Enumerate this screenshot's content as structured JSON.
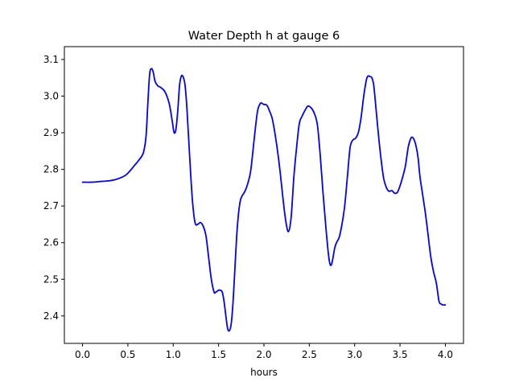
{
  "chart_data": {
    "type": "line",
    "title": "Water Depth h at gauge 6",
    "xlabel": "hours",
    "ylabel": "",
    "xlim": [
      -0.2,
      4.2
    ],
    "ylim": [
      2.325,
      3.135
    ],
    "xticks": [
      0.0,
      0.5,
      1.0,
      1.5,
      2.0,
      2.5,
      3.0,
      3.5,
      4.0
    ],
    "xtick_labels": [
      "0.0",
      "0.5",
      "1.0",
      "1.5",
      "2.0",
      "2.5",
      "3.0",
      "3.5",
      "4.0"
    ],
    "yticks": [
      2.4,
      2.5,
      2.6,
      2.7,
      2.8,
      2.9,
      3.0,
      3.1
    ],
    "ytick_labels": [
      "2.4",
      "2.5",
      "2.6",
      "2.7",
      "2.8",
      "2.9",
      "3.0",
      "3.1"
    ],
    "grid": false,
    "series": [
      {
        "color": "#0000ff",
        "x": [
          0.0,
          0.1,
          0.2,
          0.3,
          0.36,
          0.42,
          0.48,
          0.52,
          0.57,
          0.62,
          0.67,
          0.7,
          0.72,
          0.74,
          0.76,
          0.78,
          0.8,
          0.83,
          0.86,
          0.9,
          0.93,
          0.96,
          0.99,
          1.01,
          1.03,
          1.05,
          1.07,
          1.09,
          1.11,
          1.13,
          1.15,
          1.18,
          1.21,
          1.24,
          1.27,
          1.3,
          1.33,
          1.36,
          1.39,
          1.42,
          1.45,
          1.47,
          1.5,
          1.52,
          1.54,
          1.56,
          1.58,
          1.6,
          1.62,
          1.64,
          1.66,
          1.68,
          1.7,
          1.72,
          1.74,
          1.76,
          1.79,
          1.82,
          1.85,
          1.87,
          1.9,
          1.93,
          1.96,
          1.98,
          2.0,
          2.02,
          2.04,
          2.06,
          2.09,
          2.12,
          2.15,
          2.18,
          2.21,
          2.24,
          2.27,
          2.3,
          2.33,
          2.36,
          2.39,
          2.42,
          2.45,
          2.48,
          2.5,
          2.53,
          2.56,
          2.59,
          2.62,
          2.65,
          2.68,
          2.71,
          2.73,
          2.75,
          2.78,
          2.8,
          2.83,
          2.86,
          2.89,
          2.92,
          2.95,
          2.98,
          3.01,
          3.04,
          3.07,
          3.1,
          3.13,
          3.15,
          3.17,
          3.19,
          3.21,
          3.23,
          3.26,
          3.29,
          3.32,
          3.35,
          3.38,
          3.41,
          3.44,
          3.47,
          3.5,
          3.53,
          3.56,
          3.59,
          3.62,
          3.64,
          3.66,
          3.68,
          3.7,
          3.72,
          3.75,
          3.78,
          3.81,
          3.84,
          3.87,
          3.9,
          3.93,
          3.95,
          3.97,
          4.0
        ],
        "y": [
          2.765,
          2.765,
          2.767,
          2.769,
          2.772,
          2.777,
          2.785,
          2.795,
          2.81,
          2.825,
          2.845,
          2.89,
          2.98,
          3.06,
          3.075,
          3.065,
          3.04,
          3.028,
          3.024,
          3.015,
          3.0,
          2.975,
          2.93,
          2.9,
          2.91,
          2.96,
          3.03,
          3.055,
          3.052,
          3.03,
          2.97,
          2.84,
          2.72,
          2.655,
          2.65,
          2.655,
          2.645,
          2.62,
          2.56,
          2.5,
          2.465,
          2.465,
          2.47,
          2.47,
          2.465,
          2.44,
          2.4,
          2.365,
          2.36,
          2.38,
          2.44,
          2.53,
          2.62,
          2.68,
          2.715,
          2.728,
          2.74,
          2.76,
          2.79,
          2.83,
          2.9,
          2.96,
          2.98,
          2.98,
          2.977,
          2.977,
          2.972,
          2.96,
          2.94,
          2.9,
          2.85,
          2.79,
          2.72,
          2.66,
          2.63,
          2.67,
          2.78,
          2.86,
          2.925,
          2.945,
          2.96,
          2.972,
          2.972,
          2.965,
          2.95,
          2.92,
          2.84,
          2.74,
          2.65,
          2.57,
          2.54,
          2.545,
          2.585,
          2.6,
          2.615,
          2.65,
          2.7,
          2.78,
          2.86,
          2.88,
          2.885,
          2.9,
          2.94,
          3.0,
          3.045,
          3.055,
          3.053,
          3.05,
          3.03,
          2.98,
          2.9,
          2.83,
          2.775,
          2.75,
          2.74,
          2.742,
          2.735,
          2.737,
          2.755,
          2.78,
          2.81,
          2.86,
          2.885,
          2.887,
          2.878,
          2.86,
          2.83,
          2.78,
          2.73,
          2.68,
          2.62,
          2.56,
          2.52,
          2.49,
          2.44,
          2.433,
          2.43,
          2.43
        ]
      }
    ]
  }
}
